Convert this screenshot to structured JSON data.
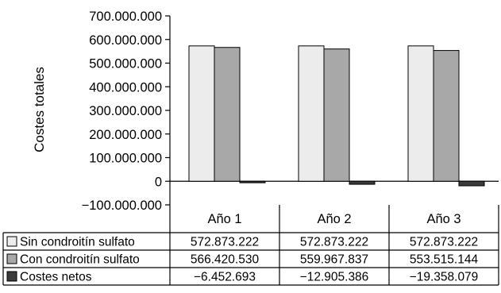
{
  "chart_data": {
    "type": "bar",
    "ylabel": "Costes totales",
    "ylim": [
      -100000000,
      700000000
    ],
    "y_ticks": [
      700000000,
      600000000,
      500000000,
      400000000,
      300000000,
      200000000,
      100000000,
      0,
      -100000000
    ],
    "y_tick_labels": [
      "700.000.000",
      "600.000.000",
      "500.000.000",
      "400.000.000",
      "300.000.000",
      "200.000.000",
      "100.000.000",
      "0",
      "−100.000.000"
    ],
    "categories": [
      "Año 1",
      "Año 2",
      "Año 3"
    ],
    "grid": false,
    "legend": "data-table",
    "series": [
      {
        "name": "Sin condroitín sulfato",
        "color": "#ececec",
        "values": [
          572873222,
          572873222,
          572873222
        ],
        "labels": [
          "572.873.222",
          "572.873.222",
          "572.873.222"
        ]
      },
      {
        "name": "Con condroitín sulfato",
        "color": "#a8a8a8",
        "values": [
          566420530,
          559967837,
          553515144
        ],
        "labels": [
          "566.420.530",
          "559.967.837",
          "553.515.144"
        ]
      },
      {
        "name": "Costes netos",
        "color": "#3a3a3a",
        "values": [
          -6452693,
          -12905386,
          -19358079
        ],
        "labels": [
          "−6.452.693",
          "−12.905.386",
          "−19.358.079"
        ]
      }
    ]
  }
}
